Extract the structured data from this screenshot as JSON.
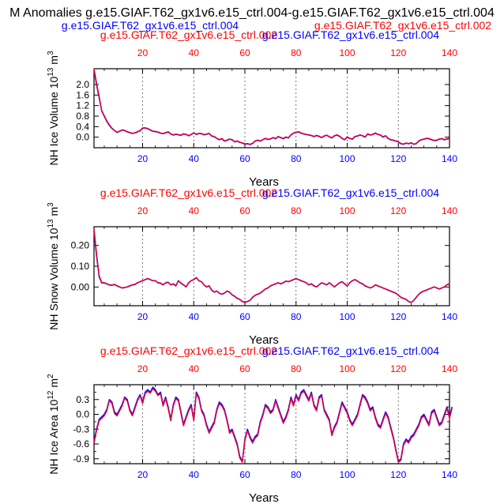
{
  "figure": {
    "title": "M Anomalies g.e15.GIAF.T62_gx1v6.e15_ctrl.004-g.e15.GIAF.T62_gx1v6.e15_ctrl.004",
    "top_blue_label": "g.e15.GIAF.T62_gx1v6.e15_ctrl.004",
    "top_red_label": "g.e15.GIAF.T62_gx1v6.e15_ctrl.002"
  },
  "colors": {
    "case_a": "#0000ff",
    "case_b": "#e0003c",
    "text": "#000000"
  },
  "chart_data": [
    {
      "type": "line",
      "red_label": "g.e15.GIAF.T62_gx1v6.e15_ctrl.002",
      "blue_label": "g.e15.GIAF.T62_gx1v6.e15_ctrl.004",
      "xlabel": "Years",
      "ylabel": "NH Ice Volume 10",
      "ylabel_exp": "13",
      "ylabel_unit": " m",
      "ylabel_unit_exp": "3",
      "xlim": [
        1,
        140
      ],
      "ylim": [
        -0.4,
        2.6
      ],
      "xticks": [
        20,
        40,
        60,
        80,
        100,
        120,
        140
      ],
      "yticks": [
        2.0,
        1.6,
        1.2,
        0.8,
        0.4,
        0.0
      ],
      "ytick_labels": [
        "2.0",
        "1.6",
        "1.2",
        "0.8",
        "0.4",
        "0.0"
      ],
      "grid_x": true,
      "series": [
        {
          "color": "#0000ff",
          "x0": 1,
          "values": [
            2.55,
            2.0,
            1.5,
            1.0,
            0.8,
            0.6,
            0.45,
            0.33,
            0.25,
            0.18,
            0.22,
            0.27,
            0.25,
            0.2,
            0.17,
            0.14,
            0.16,
            0.2,
            0.24,
            0.34,
            0.35,
            0.32,
            0.27,
            0.22,
            0.21,
            0.19,
            0.15,
            0.13,
            0.16,
            0.2,
            0.12,
            0.08,
            0.11,
            0.09,
            0.07,
            0.12,
            0.1,
            0.05,
            0.1,
            0.16,
            0.1,
            0.14,
            0.13,
            0.09,
            0.11,
            0.14,
            0.04,
            0.02,
            -0.05,
            -0.1,
            -0.06,
            -0.15,
            -0.12,
            -0.08,
            -0.1,
            -0.18,
            -0.15,
            -0.2,
            -0.22,
            -0.27,
            -0.25,
            -0.28,
            -0.24,
            -0.15,
            -0.12,
            -0.15,
            -0.1,
            -0.05,
            -0.09,
            -0.07,
            -0.02,
            -0.06,
            0.02,
            -0.02,
            -0.06,
            0.0,
            -0.03,
            0.08,
            0.15,
            0.18,
            0.2,
            0.15,
            0.12,
            0.1,
            0.08,
            0.06,
            0.02,
            0.06,
            0.03,
            -0.02,
            0.04,
            0.07,
            0.01,
            -0.03,
            0.05,
            0.08,
            0.03,
            -0.05,
            -0.1,
            0.0,
            -0.05,
            -0.08,
            0.02,
            0.04,
            0.08,
            0.05,
            0.0,
            0.12,
            0.08,
            0.1,
            0.15,
            0.1,
            0.08,
            0.0,
            0.05,
            -0.05,
            -0.1,
            -0.12,
            -0.15,
            -0.18,
            -0.25,
            -0.27,
            -0.23,
            -0.25,
            -0.22,
            -0.27,
            -0.25,
            -0.15,
            -0.1,
            -0.08,
            -0.05,
            -0.06,
            -0.1,
            -0.13,
            -0.12,
            -0.08,
            -0.06,
            -0.1,
            -0.07,
            -0.06
          ]
        },
        {
          "color": "#e0003c",
          "x0": 1,
          "values": [
            2.6,
            2.05,
            1.55,
            1.02,
            0.82,
            0.62,
            0.47,
            0.34,
            0.26,
            0.19,
            0.23,
            0.28,
            0.26,
            0.21,
            0.18,
            0.15,
            0.17,
            0.21,
            0.25,
            0.35,
            0.36,
            0.33,
            0.28,
            0.23,
            0.22,
            0.2,
            0.16,
            0.14,
            0.17,
            0.21,
            0.13,
            0.09,
            0.12,
            0.1,
            0.08,
            0.13,
            0.11,
            0.06,
            0.11,
            0.17,
            0.11,
            0.15,
            0.14,
            0.1,
            0.12,
            0.15,
            0.05,
            0.03,
            -0.04,
            -0.09,
            -0.05,
            -0.14,
            -0.11,
            -0.07,
            -0.09,
            -0.17,
            -0.14,
            -0.19,
            -0.21,
            -0.26,
            -0.24,
            -0.27,
            -0.23,
            -0.14,
            -0.11,
            -0.14,
            -0.09,
            -0.04,
            -0.08,
            -0.06,
            -0.01,
            -0.05,
            0.03,
            -0.01,
            -0.05,
            0.01,
            -0.02,
            0.09,
            0.16,
            0.19,
            0.21,
            0.16,
            0.13,
            0.11,
            0.09,
            0.07,
            0.03,
            0.07,
            0.04,
            -0.01,
            0.05,
            0.08,
            0.02,
            -0.02,
            0.06,
            0.09,
            0.04,
            -0.04,
            -0.09,
            0.01,
            -0.04,
            -0.07,
            0.03,
            0.05,
            0.09,
            0.06,
            0.01,
            0.13,
            0.09,
            0.11,
            0.16,
            0.11,
            0.09,
            0.01,
            0.06,
            -0.04,
            -0.09,
            -0.11,
            -0.14,
            -0.17,
            -0.24,
            -0.26,
            -0.22,
            -0.24,
            -0.21,
            -0.26,
            -0.24,
            -0.14,
            -0.09,
            -0.07,
            -0.04,
            -0.05,
            -0.09,
            -0.12,
            -0.11,
            -0.07,
            -0.05,
            -0.09,
            -0.06,
            -0.05
          ]
        }
      ]
    },
    {
      "type": "line",
      "red_label": "g.e15.GIAF.T62_gx1v6.e15_ctrl.002",
      "blue_label": "g.e15.GIAF.T62_gx1v6.e15_ctrl.004",
      "xlabel": "Years",
      "ylabel": "NH Snow Volume 10",
      "ylabel_exp": "13",
      "ylabel_unit": " m",
      "ylabel_unit_exp": "3",
      "xlim": [
        1,
        140
      ],
      "ylim": [
        -0.09,
        0.29
      ],
      "xticks": [
        20,
        40,
        60,
        80,
        100,
        120,
        140
      ],
      "yticks": [
        0.2,
        0.1,
        0.0
      ],
      "ytick_labels": [
        "0.20",
        "0.10",
        "0.00"
      ],
      "grid_x": true,
      "series": [
        {
          "color": "#0000ff",
          "x0": 1,
          "values": [
            0.27,
            0.15,
            0.05,
            0.02,
            0.02,
            0.015,
            0.01,
            0.008,
            0.012,
            0.005,
            0.0,
            -0.005,
            -0.003,
            0.0,
            0.005,
            0.01,
            0.012,
            0.02,
            0.025,
            0.03,
            0.035,
            0.04,
            0.035,
            0.03,
            0.03,
            0.02,
            0.018,
            0.01,
            0.02,
            0.022,
            0.01,
            0.015,
            0.005,
            0.03,
            0.018,
            0.01,
            0.0,
            0.02,
            0.03,
            0.035,
            0.045,
            0.03,
            0.025,
            0.01,
            0.0,
            0.005,
            -0.015,
            -0.025,
            -0.02,
            -0.03,
            -0.035,
            -0.03,
            -0.02,
            -0.025,
            -0.038,
            -0.045,
            -0.055,
            -0.06,
            -0.07,
            -0.075,
            -0.07,
            -0.065,
            -0.05,
            -0.04,
            -0.035,
            -0.03,
            -0.02,
            -0.01,
            -0.005,
            0.005,
            0.01,
            0.015,
            0.02,
            0.015,
            0.02,
            0.028,
            0.025,
            0.03,
            0.035,
            0.04,
            0.035,
            0.03,
            0.025,
            0.02,
            0.01,
            0.015,
            0.005,
            0.0,
            0.01,
            0.02,
            0.015,
            0.01,
            0.02,
            0.01,
            0.0,
            0.01,
            0.02,
            0.025,
            0.015,
            0.005,
            0.02,
            0.03,
            0.035,
            0.028,
            0.02,
            0.015,
            0.005,
            0.0,
            -0.005,
            0.0,
            0.01,
            0.005,
            0.0,
            -0.005,
            -0.01,
            -0.015,
            -0.02,
            -0.025,
            -0.03,
            -0.04,
            -0.05,
            -0.055,
            -0.06,
            -0.07,
            -0.075,
            -0.065,
            -0.05,
            -0.035,
            -0.025,
            -0.02,
            -0.015,
            -0.01,
            -0.005,
            0.0,
            -0.005,
            -0.01,
            -0.005,
            0.0,
            0.01,
            0.015
          ]
        },
        {
          "color": "#e0003c",
          "x0": 1,
          "values": [
            0.28,
            0.16,
            0.055,
            0.022,
            0.021,
            0.016,
            0.011,
            0.009,
            0.013,
            0.006,
            0.001,
            -0.004,
            -0.002,
            0.001,
            0.006,
            0.011,
            0.013,
            0.021,
            0.026,
            0.031,
            0.036,
            0.041,
            0.036,
            0.031,
            0.031,
            0.021,
            0.019,
            0.011,
            0.021,
            0.023,
            0.011,
            0.016,
            0.006,
            0.031,
            0.019,
            0.011,
            0.001,
            0.021,
            0.031,
            0.036,
            0.046,
            0.031,
            0.026,
            0.011,
            0.001,
            0.006,
            -0.014,
            -0.024,
            -0.019,
            -0.029,
            -0.034,
            -0.029,
            -0.019,
            -0.024,
            -0.037,
            -0.044,
            -0.054,
            -0.059,
            -0.069,
            -0.074,
            -0.069,
            -0.064,
            -0.049,
            -0.039,
            -0.034,
            -0.029,
            -0.019,
            -0.009,
            -0.004,
            0.006,
            0.011,
            0.016,
            0.021,
            0.016,
            0.021,
            0.029,
            0.026,
            0.031,
            0.036,
            0.041,
            0.036,
            0.031,
            0.026,
            0.021,
            0.011,
            0.016,
            0.006,
            0.001,
            0.011,
            0.021,
            0.016,
            0.011,
            0.021,
            0.011,
            0.001,
            0.011,
            0.021,
            0.026,
            0.016,
            0.006,
            0.021,
            0.031,
            0.036,
            0.029,
            0.021,
            0.016,
            0.006,
            0.001,
            -0.004,
            0.001,
            0.011,
            0.006,
            0.001,
            -0.004,
            -0.009,
            -0.014,
            -0.019,
            -0.024,
            -0.029,
            -0.039,
            -0.049,
            -0.054,
            -0.059,
            -0.069,
            -0.074,
            -0.064,
            -0.049,
            -0.034,
            -0.024,
            -0.019,
            -0.014,
            -0.009,
            -0.004,
            0.001,
            -0.004,
            -0.009,
            -0.004,
            0.001,
            0.011,
            0.016
          ]
        }
      ]
    },
    {
      "type": "line",
      "red_label": "g.e15.GIAF.T62_gx1v6.e15_ctrl.002",
      "blue_label": "g.e15.GIAF.T62_gx1v6.e15_ctrl.004",
      "xlabel": "Years",
      "ylabel": "NH Ice Area 10",
      "ylabel_exp": "12",
      "ylabel_unit": " m",
      "ylabel_unit_exp": "2",
      "xlim": [
        1,
        140
      ],
      "ylim": [
        -1.0,
        0.6
      ],
      "xticks": [
        20,
        40,
        60,
        80,
        100,
        120,
        140
      ],
      "yticks": [
        0.3,
        0.0,
        -0.3,
        -0.6,
        -0.9
      ],
      "ytick_labels": [
        "0.3",
        "0.0",
        "-0.3",
        "-0.6",
        "-0.9"
      ],
      "extra_yticks": [
        0.45,
        0.15,
        -0.15,
        -0.45,
        -0.75
      ],
      "extra_ytick_labels": [
        "",
        "",
        "",
        "",
        ""
      ],
      "grid_x": true,
      "series": [
        {
          "color": "#0000ff",
          "x0": 1,
          "values": [
            -0.55,
            -0.3,
            -0.1,
            -0.05,
            0.0,
            0.1,
            0.3,
            0.25,
            0.05,
            0.0,
            0.1,
            0.2,
            0.35,
            0.3,
            0.1,
            0.0,
            0.15,
            0.3,
            0.4,
            0.25,
            0.45,
            0.5,
            0.45,
            0.55,
            0.5,
            0.4,
            0.45,
            0.2,
            0.35,
            0.15,
            -0.1,
            0.2,
            0.35,
            0.3,
            0.05,
            -0.2,
            -0.05,
            0.1,
            0.2,
            -0.1,
            0.45,
            0.35,
            0.1,
            0.0,
            -0.2,
            -0.35,
            -0.25,
            -0.15,
            0.1,
            0.25,
            0.2,
            0.1,
            -0.1,
            -0.35,
            -0.3,
            -0.45,
            -0.6,
            -0.85,
            -0.95,
            -0.5,
            -0.3,
            -0.45,
            -0.55,
            -0.45,
            -0.4,
            -0.15,
            0.0,
            0.2,
            0.15,
            0.05,
            0.1,
            0.3,
            0.15,
            0.0,
            -0.15,
            -0.05,
            0.1,
            0.35,
            0.2,
            0.4,
            0.3,
            0.45,
            0.5,
            0.4,
            0.3,
            0.45,
            0.2,
            0.1,
            0.35,
            0.4,
            0.1,
            0.0,
            -0.1,
            -0.4,
            -0.25,
            -0.15,
            0.05,
            0.25,
            0.15,
            0.05,
            -0.1,
            -0.2,
            -0.1,
            0.0,
            0.2,
            0.4,
            0.35,
            0.25,
            0.1,
            0.15,
            -0.05,
            -0.2,
            -0.25,
            -0.1,
            0.05,
            -0.05,
            -0.25,
            -0.45,
            -0.7,
            -0.95,
            -0.9,
            -0.6,
            -0.5,
            -0.55,
            -0.45,
            -0.4,
            -0.3,
            -0.2,
            -0.05,
            0.0,
            -0.1,
            -0.2,
            0.05,
            0.1,
            -0.05,
            -0.2,
            -0.15,
            0.0,
            0.15,
            -0.05,
            0.15
          ]
        },
        {
          "color": "#e0003c",
          "x0": 1,
          "values": [
            -0.58,
            -0.33,
            -0.13,
            -0.08,
            -0.03,
            0.07,
            0.28,
            0.22,
            0.02,
            -0.03,
            0.07,
            0.17,
            0.33,
            0.27,
            0.07,
            -0.03,
            0.12,
            0.27,
            0.38,
            0.22,
            0.42,
            0.47,
            0.43,
            0.52,
            0.47,
            0.38,
            0.42,
            0.17,
            0.32,
            0.12,
            -0.13,
            0.17,
            0.32,
            0.27,
            0.02,
            -0.23,
            -0.08,
            0.07,
            0.17,
            -0.13,
            0.42,
            0.32,
            0.07,
            -0.03,
            -0.23,
            -0.38,
            -0.28,
            -0.18,
            0.07,
            0.22,
            0.17,
            0.07,
            -0.13,
            -0.38,
            -0.33,
            -0.48,
            -0.63,
            -0.88,
            -0.97,
            -0.53,
            -0.33,
            -0.48,
            -0.58,
            -0.48,
            -0.43,
            -0.18,
            -0.03,
            0.17,
            0.12,
            0.02,
            0.07,
            0.27,
            0.12,
            -0.03,
            -0.18,
            -0.08,
            0.07,
            0.32,
            0.17,
            0.37,
            0.27,
            0.42,
            0.47,
            0.37,
            0.27,
            0.42,
            0.17,
            0.07,
            0.32,
            0.37,
            0.07,
            -0.03,
            -0.13,
            -0.43,
            -0.28,
            -0.18,
            0.02,
            0.22,
            0.12,
            0.02,
            -0.13,
            -0.23,
            -0.13,
            -0.03,
            0.17,
            0.37,
            0.32,
            0.22,
            0.07,
            0.12,
            -0.08,
            -0.23,
            -0.28,
            -0.13,
            0.02,
            -0.08,
            -0.28,
            -0.48,
            -0.73,
            -0.97,
            -0.93,
            -0.63,
            -0.53,
            -0.58,
            -0.48,
            -0.43,
            -0.33,
            -0.23,
            -0.08,
            -0.03,
            -0.13,
            -0.23,
            0.02,
            0.07,
            -0.08,
            -0.23,
            -0.18,
            -0.03,
            0.12,
            -0.08,
            0.12
          ]
        }
      ]
    }
  ]
}
